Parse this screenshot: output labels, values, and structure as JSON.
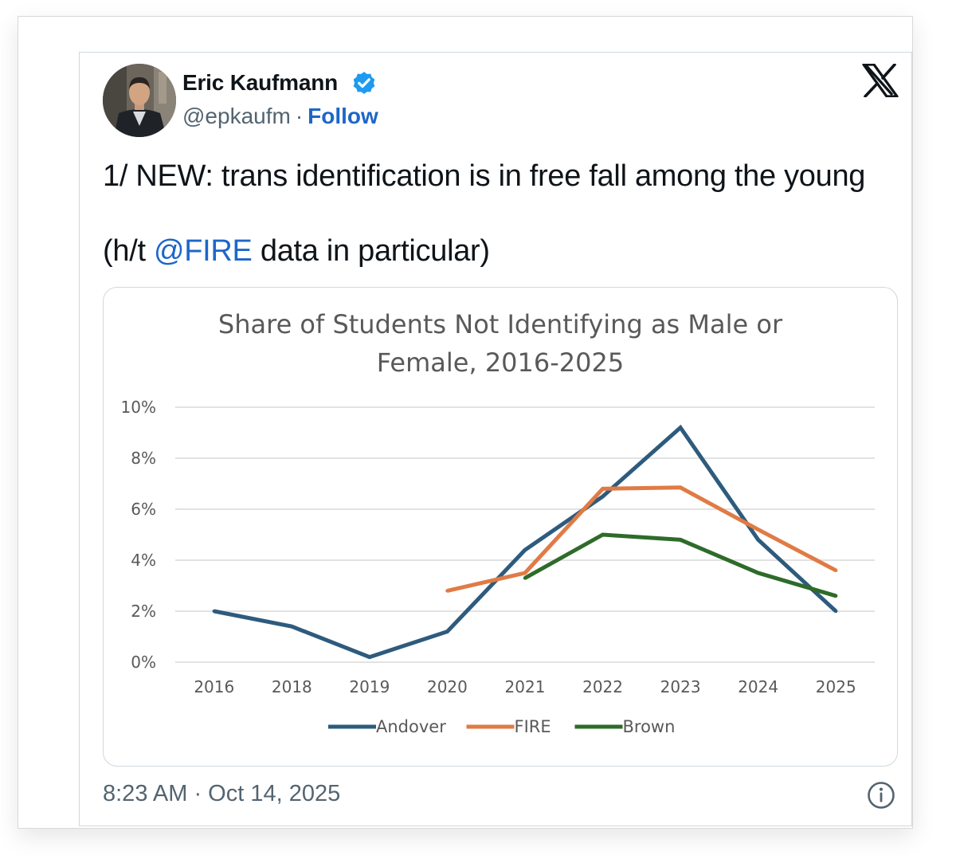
{
  "author": {
    "name": "Eric Kaufmann",
    "handle": "@epkaufm",
    "separator": "·",
    "follow_label": "Follow",
    "verified_color": "#1d9bf0"
  },
  "icons": {
    "brand": "x-logo-icon",
    "verified": "verified-badge-icon",
    "info": "info-icon"
  },
  "tweet": {
    "line1": "1/ NEW: trans identification is in free fall among the young",
    "line2_prefix": "(h/t ",
    "mention": "@FIRE",
    "line2_suffix": " data in particular)",
    "timestamp": "8:23 AM · Oct 14, 2025"
  },
  "colors": {
    "link": "#1d66c9",
    "andover": "#2e5b7d",
    "fire": "#e07b45",
    "brown": "#2e6b2a"
  },
  "chart_data": {
    "type": "line",
    "title_lines": [
      "Share of Students Not Identifying as Male or",
      "Female, 2016-2025"
    ],
    "categories": [
      "2016",
      "2018",
      "2019",
      "2020",
      "2021",
      "2022",
      "2023",
      "2024",
      "2025"
    ],
    "ylim": [
      0,
      10
    ],
    "yticks": [
      0,
      2,
      4,
      6,
      8,
      10
    ],
    "ytick_labels": [
      "0%",
      "2%",
      "4%",
      "6%",
      "8%",
      "10%"
    ],
    "grid": true,
    "legend_position": "bottom",
    "series": [
      {
        "name": "Andover",
        "color": "#2e5b7d",
        "values": [
          2.0,
          1.4,
          0.2,
          1.2,
          4.4,
          6.5,
          9.2,
          4.8,
          2.0
        ]
      },
      {
        "name": "FIRE",
        "color": "#e07b45",
        "values": [
          null,
          null,
          null,
          2.8,
          3.5,
          6.8,
          6.85,
          5.2,
          3.6
        ]
      },
      {
        "name": "Brown",
        "color": "#2e6b2a",
        "values": [
          null,
          null,
          null,
          null,
          3.3,
          5.0,
          4.8,
          3.5,
          2.6
        ]
      }
    ]
  }
}
